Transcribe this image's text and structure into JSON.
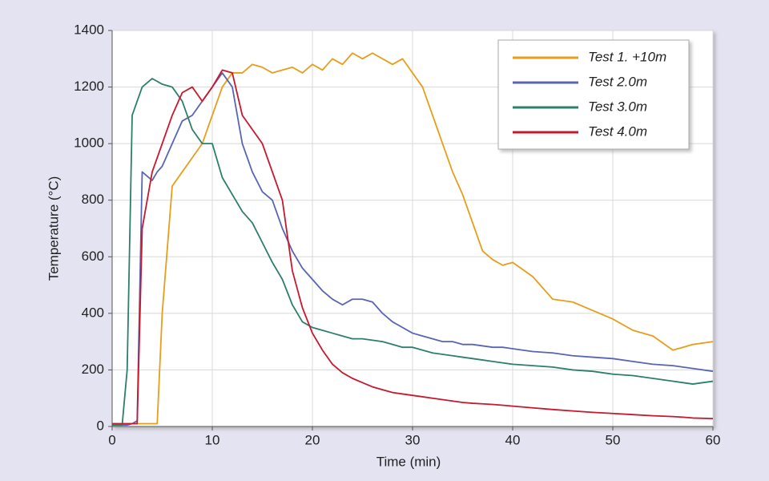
{
  "chart_data": {
    "type": "line",
    "x_label": "Time (min)",
    "y_label": "Temperature (°C)",
    "x": [
      0,
      1,
      1.5,
      2,
      2.5,
      3,
      4,
      4.5,
      5,
      6,
      7,
      8,
      9,
      10,
      11,
      12,
      13,
      14,
      15,
      16,
      17,
      18,
      19,
      20,
      21,
      22,
      23,
      24,
      25,
      26,
      27,
      28,
      29,
      30,
      31,
      32,
      33,
      34,
      35,
      36,
      37,
      38,
      39,
      40,
      42,
      44,
      46,
      48,
      50,
      52,
      54,
      56,
      57,
      58,
      60
    ],
    "series": [
      {
        "name": "Test 1. +10m",
        "color": "#e89d1b",
        "values": [
          10,
          10,
          10,
          10,
          10,
          10,
          10,
          10,
          400,
          850,
          900,
          950,
          1000,
          1100,
          1200,
          1250,
          1250,
          1280,
          1270,
          1250,
          1260,
          1270,
          1250,
          1280,
          1260,
          1300,
          1280,
          1320,
          1300,
          1320,
          1300,
          1280,
          1300,
          1250,
          1200,
          1100,
          1000,
          900,
          820,
          720,
          620,
          590,
          570,
          580,
          530,
          450,
          440,
          410,
          380,
          340,
          320,
          270,
          280,
          290,
          300
        ]
      },
      {
        "name": "Test 2.0m",
        "color": "#5865b5",
        "values": [
          5,
          5,
          5,
          10,
          20,
          900,
          870,
          900,
          920,
          1000,
          1080,
          1100,
          1150,
          1200,
          1250,
          1200,
          1000,
          900,
          830,
          800,
          700,
          620,
          560,
          520,
          480,
          450,
          430,
          450,
          450,
          440,
          400,
          370,
          350,
          330,
          320,
          310,
          300,
          300,
          290,
          290,
          285,
          280,
          280,
          275,
          265,
          260,
          250,
          245,
          240,
          230,
          220,
          215,
          210,
          205,
          195
        ]
      },
      {
        "name": "Test 3.0m",
        "color": "#2c7f6b",
        "values": [
          5,
          5,
          200,
          1100,
          1150,
          1200,
          1230,
          1220,
          1210,
          1200,
          1150,
          1050,
          1000,
          1000,
          880,
          820,
          760,
          720,
          650,
          580,
          520,
          430,
          370,
          350,
          340,
          330,
          320,
          310,
          310,
          305,
          300,
          290,
          280,
          280,
          270,
          260,
          255,
          250,
          245,
          240,
          235,
          230,
          225,
          220,
          215,
          210,
          200,
          195,
          185,
          180,
          170,
          160,
          155,
          150,
          160
        ]
      },
      {
        "name": "Test 4.0m",
        "color": "#c8182d",
        "values": [
          10,
          10,
          10,
          10,
          10,
          700,
          900,
          950,
          1000,
          1100,
          1180,
          1200,
          1150,
          1200,
          1260,
          1250,
          1100,
          1050,
          1000,
          900,
          800,
          550,
          420,
          330,
          270,
          220,
          190,
          170,
          155,
          140,
          130,
          120,
          115,
          110,
          105,
          100,
          95,
          90,
          85,
          82,
          80,
          78,
          75,
          72,
          66,
          60,
          55,
          50,
          46,
          42,
          38,
          35,
          33,
          30,
          28
        ]
      }
    ],
    "xlim": [
      0,
      60
    ],
    "xticks": [
      0,
      10,
      20,
      30,
      40,
      50,
      60
    ],
    "ylim": [
      0,
      1400
    ],
    "yticks": [
      0,
      200,
      400,
      600,
      800,
      1000,
      1200,
      1400
    ],
    "grid": true,
    "legend": "upper right"
  }
}
